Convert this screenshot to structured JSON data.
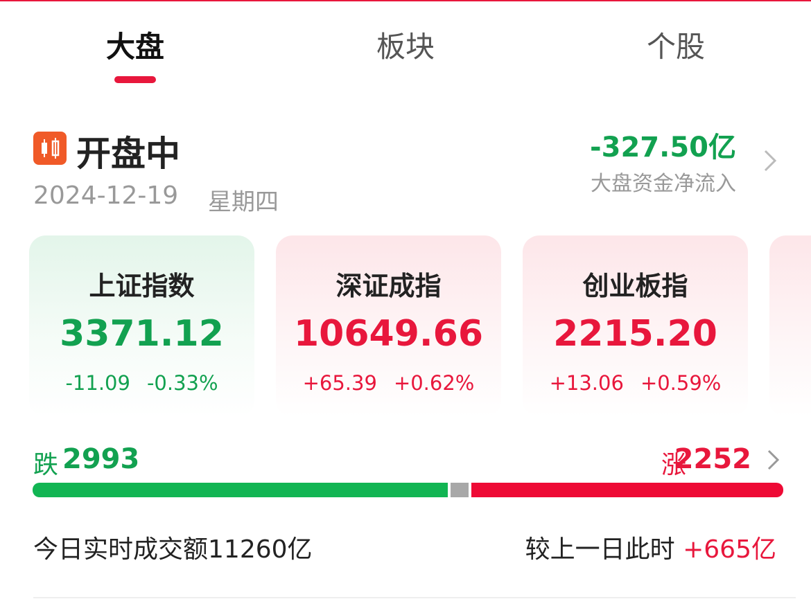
{
  "tabs": [
    "大盘",
    "板块",
    "个股"
  ],
  "status": {
    "label": "开盘中",
    "date": "2024-12-19",
    "weekday": "星期四"
  },
  "fund_flow": {
    "value": "-327.50亿",
    "label": "大盘资金净流入"
  },
  "indices": [
    {
      "name": "上证指数",
      "value": "3371.12",
      "change": "-11.09",
      "pct": "-0.33%",
      "trend": "down"
    },
    {
      "name": "深证成指",
      "value": "10649.66",
      "change": "+65.39",
      "pct": "+0.62%",
      "trend": "up"
    },
    {
      "name": "创业板指",
      "value": "2215.20",
      "change": "+13.06",
      "pct": "+0.59%",
      "trend": "up"
    }
  ],
  "breadth": {
    "down_label": "跌",
    "down": 2993,
    "up_label": "涨",
    "up": 2252
  },
  "turnover": {
    "label": "今日实时成交额",
    "value": "11260亿",
    "compare_label": "较上一日此时",
    "compare_value": "+665亿"
  }
}
